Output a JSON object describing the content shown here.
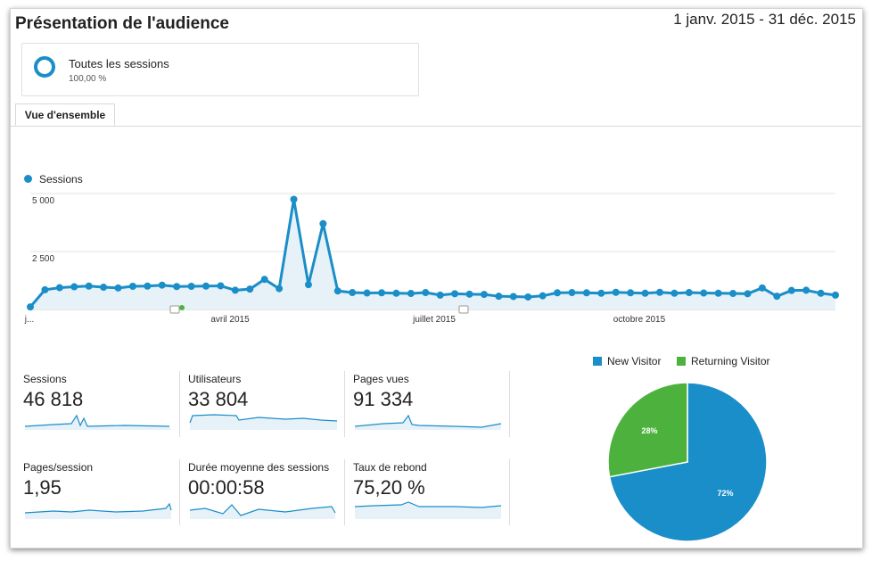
{
  "header": {
    "title": "Présentation de l'audience",
    "date_range": "1 janv. 2015 - 31 déc. 2015"
  },
  "segment": {
    "label": "Toutes les sessions",
    "percent": "100,00 %"
  },
  "tabs": [
    {
      "label": "Vue d'ensemble"
    }
  ],
  "colors": {
    "sessions": "#1a8ec8",
    "new_visitor": "#1a8ec8",
    "returning_visitor": "#4db23d"
  },
  "chart_data": [
    {
      "type": "line",
      "series": [
        {
          "name": "Sessions",
          "values": [
            110,
            850,
            940,
            980,
            1010,
            960,
            930,
            1000,
            1010,
            1050,
            990,
            1000,
            1010,
            1020,
            830,
            880,
            1300,
            900,
            4750,
            1070,
            3700,
            800,
            730,
            710,
            720,
            700,
            690,
            730,
            620,
            680,
            660,
            650,
            570,
            560,
            540,
            590,
            720,
            730,
            720,
            700,
            740,
            720,
            700,
            740,
            700,
            730,
            710,
            700,
            690,
            680,
            930,
            570,
            820,
            830,
            700,
            620
          ]
        }
      ],
      "x_tick_labels": [
        "j...",
        "avril 2015",
        "juillet 2015",
        "octobre 2015"
      ],
      "y_tick_labels": [
        "5 000",
        "2 500"
      ],
      "ylim": [
        0,
        5000
      ]
    },
    {
      "type": "pie",
      "labels": [
        "New Visitor",
        "Returning Visitor"
      ],
      "values": [
        72,
        28
      ],
      "slice_labels": [
        "72%",
        "28%"
      ],
      "legend": "top"
    }
  ],
  "metrics": [
    {
      "label": "Sessions",
      "value": "46 818"
    },
    {
      "label": "Utilisateurs",
      "value": "33 804"
    },
    {
      "label": "Pages vues",
      "value": "91 334"
    },
    {
      "label": "Pages/session",
      "value": "1,95"
    },
    {
      "label": "Durée moyenne des sessions",
      "value": "00:00:58"
    },
    {
      "label": "Taux de rebond",
      "value": "75,20 %"
    }
  ]
}
